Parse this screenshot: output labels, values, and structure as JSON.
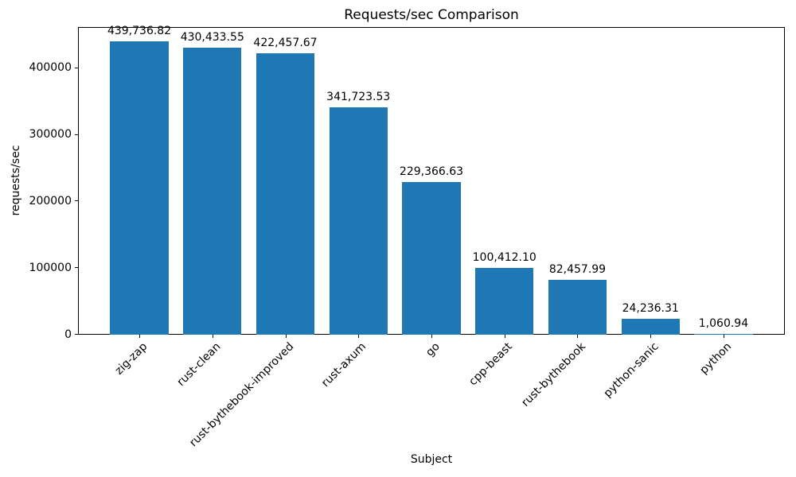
{
  "chart_data": {
    "type": "bar",
    "title": "Requests/sec Comparison",
    "xlabel": "Subject",
    "ylabel": "requests/sec",
    "categories": [
      "zig-zap",
      "rust-clean",
      "rust-bythebook-improved",
      "rust-axum",
      "go",
      "cpp-beast",
      "rust-bythebook",
      "python-sanic",
      "python"
    ],
    "values": [
      439736.82,
      430433.55,
      422457.67,
      341723.53,
      229366.63,
      100412.1,
      82457.99,
      24236.31,
      1060.94
    ],
    "value_labels": [
      "439,736.82",
      "430,433.55",
      "422,457.67",
      "341,723.53",
      "229,366.63",
      "100,412.10",
      "82,457.99",
      "24,236.31",
      "1,060.94"
    ],
    "yticks": [
      0,
      100000,
      200000,
      300000,
      400000
    ],
    "ylim": [
      0,
      461723
    ],
    "bar_color": "#1f77b4",
    "grid": false,
    "legend_position": "none"
  }
}
